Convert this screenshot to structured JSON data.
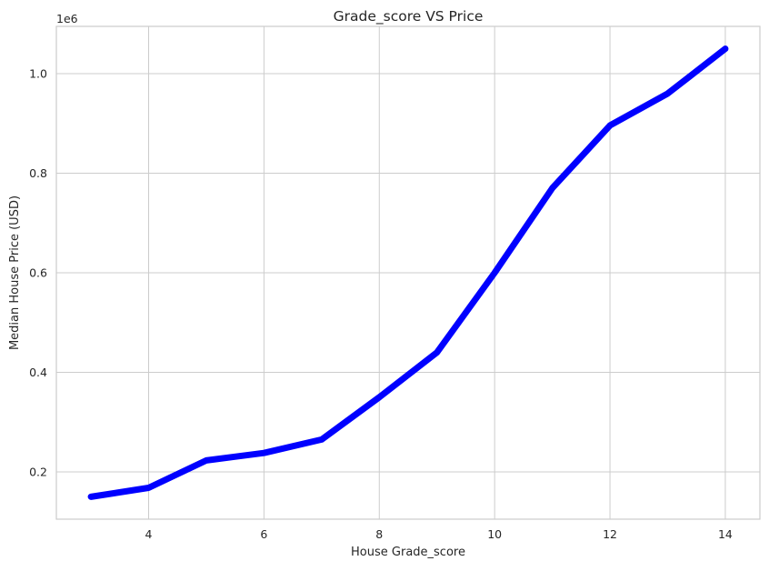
{
  "chart_data": {
    "type": "line",
    "title": "Grade_score VS  Price",
    "xlabel": "House Grade_score",
    "ylabel": "Median House Price (USD)",
    "y_offset_label": "1e6",
    "x": [
      3,
      4,
      5,
      6,
      7,
      8,
      9,
      10,
      11,
      12,
      13,
      14
    ],
    "series": [
      {
        "values": [
          0.15,
          0.168,
          0.223,
          0.238,
          0.265,
          0.35,
          0.44,
          0.6,
          0.77,
          0.896,
          0.96,
          1.05
        ],
        "color": "#0000ff"
      }
    ],
    "xlim": [
      2.4,
      14.6
    ],
    "ylim": [
      0.105,
      1.095
    ],
    "x_ticks": [
      4,
      6,
      8,
      10,
      12,
      14
    ],
    "x_tick_labels": [
      "4",
      "6",
      "8",
      "10",
      "12",
      "14"
    ],
    "y_ticks": [
      0.2,
      0.4,
      0.6,
      0.8,
      1.0
    ],
    "y_tick_labels": [
      "0.2",
      "0.4",
      "0.6",
      "0.8",
      "1.0"
    ],
    "grid": true,
    "legend": false
  }
}
